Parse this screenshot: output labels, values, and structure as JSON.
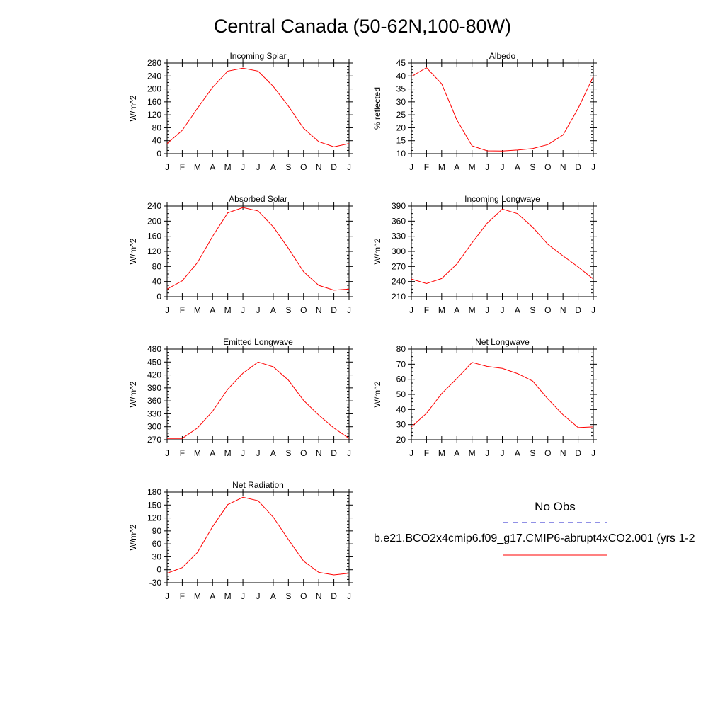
{
  "title": "Central Canada (50-62N,100-80W)",
  "months": [
    "J",
    "F",
    "M",
    "A",
    "M",
    "J",
    "J",
    "A",
    "S",
    "O",
    "N",
    "D",
    "J"
  ],
  "legend": {
    "obs_label": "No Obs",
    "model_label": "b.e21.BCO2x4cmip6.f09_g17.CMIP6-abrupt4xCO2.001 (yrs 1-2",
    "obs_color": "#2222cc",
    "model_color": "#ff0000"
  },
  "chart_data": [
    {
      "type": "line",
      "title": "Incoming Solar",
      "ylabel": "W/m^2",
      "ylim": [
        0,
        280
      ],
      "yticks": [
        0,
        40,
        80,
        120,
        160,
        200,
        240,
        280
      ],
      "x": [
        "J",
        "F",
        "M",
        "A",
        "M",
        "J",
        "J",
        "A",
        "S",
        "O",
        "N",
        "D",
        "J"
      ],
      "series": [
        {
          "color": "#ff0000",
          "values": [
            31,
            72,
            140,
            205,
            255,
            264,
            255,
            208,
            147,
            78,
            37,
            21,
            31
          ]
        }
      ]
    },
    {
      "type": "line",
      "title": "Albedo",
      "ylabel": "% reflected",
      "ylim": [
        10,
        45
      ],
      "yticks": [
        10,
        15,
        20,
        25,
        30,
        35,
        40,
        45
      ],
      "x": [
        "J",
        "F",
        "M",
        "A",
        "M",
        "J",
        "J",
        "A",
        "S",
        "O",
        "N",
        "D",
        "J"
      ],
      "series": [
        {
          "color": "#ff0000",
          "values": [
            39.8,
            43.2,
            37.0,
            23.0,
            13.0,
            11.1,
            11.0,
            11.4,
            12.0,
            13.5,
            17.2,
            27.5,
            39.8
          ]
        }
      ]
    },
    {
      "type": "line",
      "title": "Absorbed Solar",
      "ylabel": "W/m^2",
      "ylim": [
        0,
        240
      ],
      "yticks": [
        0,
        40,
        80,
        120,
        160,
        200,
        240
      ],
      "x": [
        "J",
        "F",
        "M",
        "A",
        "M",
        "J",
        "J",
        "A",
        "S",
        "O",
        "N",
        "D",
        "J"
      ],
      "series": [
        {
          "color": "#ff0000",
          "values": [
            20,
            42,
            90,
            160,
            222,
            236,
            227,
            185,
            128,
            66,
            30,
            17,
            20
          ]
        }
      ]
    },
    {
      "type": "line",
      "title": "Incoming Longwave",
      "ylabel": "W/m^2",
      "ylim": [
        210,
        390
      ],
      "yticks": [
        210,
        240,
        270,
        300,
        330,
        360,
        390
      ],
      "x": [
        "J",
        "F",
        "M",
        "A",
        "M",
        "J",
        "J",
        "A",
        "S",
        "O",
        "N",
        "D",
        "J"
      ],
      "series": [
        {
          "color": "#ff0000",
          "values": [
            245,
            236,
            246,
            275,
            317,
            356,
            384,
            375,
            348,
            314,
            291,
            269,
            245
          ]
        }
      ]
    },
    {
      "type": "line",
      "title": "Emitted Longwave",
      "ylabel": "W/m^2",
      "ylim": [
        270,
        480
      ],
      "yticks": [
        270,
        300,
        330,
        360,
        390,
        420,
        450,
        480
      ],
      "x": [
        "J",
        "F",
        "M",
        "A",
        "M",
        "J",
        "J",
        "A",
        "S",
        "O",
        "N",
        "D",
        "J"
      ],
      "series": [
        {
          "color": "#ff0000",
          "values": [
            273,
            273,
            297,
            336,
            387,
            424,
            450,
            439,
            408,
            361,
            327,
            297,
            273
          ]
        }
      ]
    },
    {
      "type": "line",
      "title": "Net Longwave",
      "ylabel": "W/m^2",
      "ylim": [
        20,
        80
      ],
      "yticks": [
        20,
        30,
        40,
        50,
        60,
        70,
        80
      ],
      "x": [
        "J",
        "F",
        "M",
        "A",
        "M",
        "J",
        "J",
        "A",
        "S",
        "O",
        "N",
        "D",
        "J"
      ],
      "series": [
        {
          "color": "#ff0000",
          "values": [
            28.5,
            37.5,
            50.5,
            60.5,
            71.2,
            68.5,
            67.2,
            63.8,
            58.8,
            47.0,
            36.5,
            28.0,
            28.5
          ]
        }
      ]
    },
    {
      "type": "line",
      "title": "Net Radiation",
      "ylabel": "W/m^2",
      "ylim": [
        -30,
        180
      ],
      "yticks": [
        -30,
        0,
        30,
        60,
        90,
        120,
        150,
        180
      ],
      "x": [
        "J",
        "F",
        "M",
        "A",
        "M",
        "J",
        "J",
        "A",
        "S",
        "O",
        "N",
        "D",
        "J"
      ],
      "series": [
        {
          "color": "#ff0000",
          "values": [
            -8,
            5,
            40,
            100,
            151,
            168,
            160,
            122,
            70,
            20,
            -6,
            -12,
            -8
          ]
        }
      ]
    }
  ]
}
